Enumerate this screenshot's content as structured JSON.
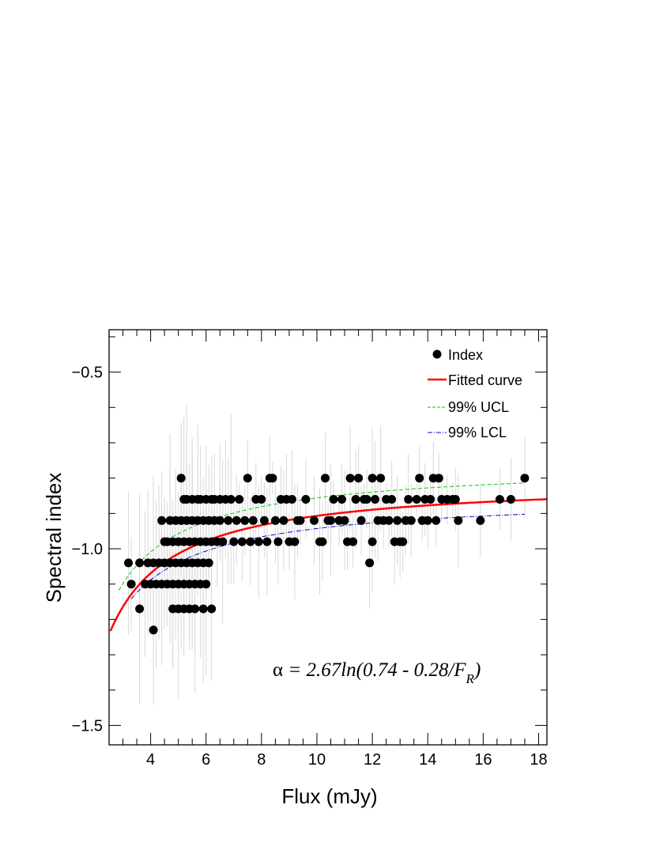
{
  "chart_data": {
    "type": "scatter",
    "xlabel": "Flux (mJy)",
    "ylabel": "Spectral index",
    "xlim": [
      2.5,
      18.3
    ],
    "ylim": [
      -1.555,
      -0.38
    ],
    "x_ticks": [
      4,
      6,
      8,
      10,
      12,
      14,
      16,
      18
    ],
    "x_tick_labels": [
      "4",
      "6",
      "8",
      "10",
      "12",
      "14",
      "16",
      "18"
    ],
    "y_ticks": [
      -1.5,
      -1.0,
      -0.5
    ],
    "y_tick_labels": [
      "−1.5",
      "−1.0",
      "−0.5"
    ],
    "grid": false,
    "legend_position": "top-right",
    "legend": [
      {
        "label": "Index",
        "style": "marker",
        "color": "#000000"
      },
      {
        "label": "Fitted curve",
        "style": "solid",
        "color": "#ff0000"
      },
      {
        "label": "99% UCL",
        "style": "dashed",
        "color": "#00cc00"
      },
      {
        "label": "99% LCL",
        "style": "dash-dot",
        "color": "#0000cc"
      }
    ],
    "annotation": {
      "prefix": "α",
      "body": " = 2.67ln(0.74 - 0.28/F",
      "subscript": "R",
      "suffix": ")"
    },
    "fit": {
      "a": 2.67,
      "b": 0.74,
      "c": 0.28,
      "x_min": 2.55,
      "x_max": 18.3
    },
    "ucl": {
      "k": 2.52,
      "b": 0.74,
      "c": 0.28,
      "x_min": 2.85,
      "x_max": 17.5
    },
    "lcl": {
      "k": 2.7,
      "b": 0.73,
      "c": 0.247,
      "x_min": 3.3,
      "x_max": 17.5
    },
    "series": [
      {
        "name": "Index",
        "marker": "circle",
        "color": "#000000",
        "points": [
          [
            3.2,
            -1.04
          ],
          [
            3.3,
            -1.1
          ],
          [
            3.6,
            -1.04
          ],
          [
            3.6,
            -1.17
          ],
          [
            3.8,
            -1.1
          ],
          [
            3.9,
            -1.04
          ],
          [
            4.0,
            -1.1
          ],
          [
            4.1,
            -1.04
          ],
          [
            4.1,
            -1.23
          ],
          [
            4.2,
            -1.1
          ],
          [
            4.3,
            -1.04
          ],
          [
            4.4,
            -0.92
          ],
          [
            4.4,
            -1.1
          ],
          [
            4.5,
            -0.98
          ],
          [
            4.5,
            -1.04
          ],
          [
            4.6,
            -1.1
          ],
          [
            4.6,
            -0.98
          ],
          [
            4.7,
            -1.04
          ],
          [
            4.7,
            -0.92
          ],
          [
            4.8,
            -1.1
          ],
          [
            4.8,
            -0.98
          ],
          [
            4.8,
            -1.17
          ],
          [
            4.9,
            -1.04
          ],
          [
            4.9,
            -0.92
          ],
          [
            5.0,
            -1.1
          ],
          [
            5.0,
            -0.98
          ],
          [
            5.0,
            -1.17
          ],
          [
            5.1,
            -1.04
          ],
          [
            5.1,
            -0.92
          ],
          [
            5.1,
            -0.8
          ],
          [
            5.2,
            -0.86
          ],
          [
            5.2,
            -0.98
          ],
          [
            5.2,
            -1.1
          ],
          [
            5.2,
            -1.17
          ],
          [
            5.3,
            -1.04
          ],
          [
            5.3,
            -0.92
          ],
          [
            5.3,
            -0.86
          ],
          [
            5.4,
            -1.1
          ],
          [
            5.4,
            -0.98
          ],
          [
            5.4,
            -1.17
          ],
          [
            5.5,
            -0.86
          ],
          [
            5.5,
            -1.04
          ],
          [
            5.5,
            -0.92
          ],
          [
            5.6,
            -0.98
          ],
          [
            5.6,
            -1.1
          ],
          [
            5.6,
            -1.17
          ],
          [
            5.7,
            -0.86
          ],
          [
            5.7,
            -1.04
          ],
          [
            5.7,
            -0.92
          ],
          [
            5.8,
            -0.98
          ],
          [
            5.8,
            -1.1
          ],
          [
            5.8,
            -0.86
          ],
          [
            5.9,
            -1.17
          ],
          [
            5.9,
            -0.92
          ],
          [
            5.9,
            -1.04
          ],
          [
            6.0,
            -0.86
          ],
          [
            6.0,
            -0.98
          ],
          [
            6.0,
            -1.1
          ],
          [
            6.1,
            -0.92
          ],
          [
            6.1,
            -1.04
          ],
          [
            6.2,
            -0.86
          ],
          [
            6.2,
            -0.98
          ],
          [
            6.2,
            -1.17
          ],
          [
            6.3,
            -0.92
          ],
          [
            6.3,
            -0.86
          ],
          [
            6.4,
            -0.98
          ],
          [
            6.5,
            -0.86
          ],
          [
            6.5,
            -0.92
          ],
          [
            6.6,
            -0.98
          ],
          [
            6.7,
            -0.86
          ],
          [
            6.8,
            -0.92
          ],
          [
            6.9,
            -0.86
          ],
          [
            7.0,
            -0.98
          ],
          [
            7.1,
            -0.92
          ],
          [
            7.2,
            -0.86
          ],
          [
            7.3,
            -0.98
          ],
          [
            7.4,
            -0.92
          ],
          [
            7.5,
            -0.8
          ],
          [
            7.6,
            -0.98
          ],
          [
            7.7,
            -0.92
          ],
          [
            7.8,
            -0.86
          ],
          [
            7.9,
            -0.98
          ],
          [
            8.0,
            -0.86
          ],
          [
            8.1,
            -0.92
          ],
          [
            8.2,
            -0.98
          ],
          [
            8.3,
            -0.8
          ],
          [
            8.4,
            -0.8
          ],
          [
            8.5,
            -0.92
          ],
          [
            8.6,
            -0.98
          ],
          [
            8.7,
            -0.86
          ],
          [
            8.8,
            -0.92
          ],
          [
            8.9,
            -0.86
          ],
          [
            9.0,
            -0.98
          ],
          [
            9.1,
            -0.86
          ],
          [
            9.2,
            -0.98
          ],
          [
            9.3,
            -0.92
          ],
          [
            9.4,
            -0.92
          ],
          [
            9.6,
            -0.86
          ],
          [
            9.9,
            -0.92
          ],
          [
            10.1,
            -0.98
          ],
          [
            10.2,
            -0.98
          ],
          [
            10.3,
            -0.8
          ],
          [
            10.4,
            -0.92
          ],
          [
            10.5,
            -0.92
          ],
          [
            10.6,
            -0.86
          ],
          [
            10.8,
            -0.92
          ],
          [
            10.9,
            -0.86
          ],
          [
            11.0,
            -0.92
          ],
          [
            11.1,
            -0.98
          ],
          [
            11.2,
            -0.8
          ],
          [
            11.3,
            -0.98
          ],
          [
            11.4,
            -0.86
          ],
          [
            11.5,
            -0.8
          ],
          [
            11.6,
            -0.92
          ],
          [
            11.7,
            -0.86
          ],
          [
            11.8,
            -0.86
          ],
          [
            11.9,
            -1.04
          ],
          [
            12.0,
            -0.8
          ],
          [
            12.0,
            -0.98
          ],
          [
            12.1,
            -0.86
          ],
          [
            12.2,
            -0.92
          ],
          [
            12.3,
            -0.8
          ],
          [
            12.4,
            -0.92
          ],
          [
            12.5,
            -0.86
          ],
          [
            12.6,
            -0.92
          ],
          [
            12.7,
            -0.86
          ],
          [
            12.8,
            -0.98
          ],
          [
            12.9,
            -0.92
          ],
          [
            13.0,
            -0.98
          ],
          [
            13.1,
            -0.98
          ],
          [
            13.2,
            -0.92
          ],
          [
            13.3,
            -0.86
          ],
          [
            13.4,
            -0.92
          ],
          [
            13.6,
            -0.86
          ],
          [
            13.7,
            -0.8
          ],
          [
            13.8,
            -0.92
          ],
          [
            13.9,
            -0.86
          ],
          [
            14.0,
            -0.92
          ],
          [
            14.1,
            -0.86
          ],
          [
            14.2,
            -0.8
          ],
          [
            14.3,
            -0.92
          ],
          [
            14.4,
            -0.8
          ],
          [
            14.5,
            -0.86
          ],
          [
            14.7,
            -0.86
          ],
          [
            14.9,
            -0.86
          ],
          [
            15.0,
            -0.86
          ],
          [
            15.1,
            -0.92
          ],
          [
            15.9,
            -0.92
          ],
          [
            16.6,
            -0.86
          ],
          [
            17.0,
            -0.86
          ],
          [
            17.5,
            -0.8
          ]
        ]
      }
    ]
  }
}
